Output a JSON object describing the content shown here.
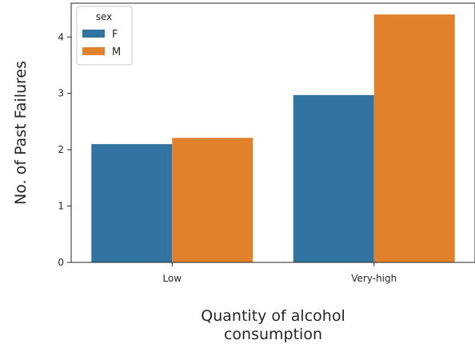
{
  "chart_data": {
    "type": "bar",
    "categories": [
      "Low",
      "Very-high"
    ],
    "series": [
      {
        "name": "F",
        "values": [
          2.1,
          2.97
        ],
        "color": "#3274a1"
      },
      {
        "name": "M",
        "values": [
          2.21,
          4.4
        ],
        "color": "#e1812c"
      }
    ],
    "xlabel": "Quantity of alcohol\nconsumption",
    "ylabel": "No. of Past Failures",
    "ylim": [
      0,
      4.6
    ],
    "yticks": [
      0,
      1,
      2,
      3,
      4
    ],
    "grid": false,
    "legend": {
      "title": "sex",
      "placement": "top-left"
    }
  }
}
